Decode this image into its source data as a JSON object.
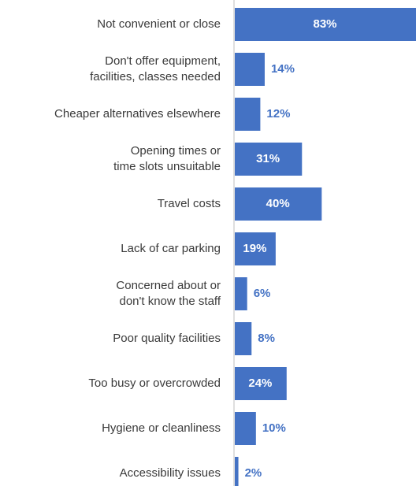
{
  "chart_data": {
    "type": "bar",
    "orientation": "horizontal",
    "categories": [
      "Not convenient or close",
      "Don't offer equipment,\nfacilities, classes needed",
      "Cheaper alternatives elsewhere",
      "Opening times or\ntime slots unsuitable",
      "Travel costs",
      "Lack of car parking",
      "Concerned about or\ndon't know the staff",
      "Poor quality facilities",
      "Too busy or overcrowded",
      "Hygiene or cleanliness",
      "Accessibility issues"
    ],
    "values": [
      83,
      14,
      12,
      31,
      40,
      19,
      6,
      8,
      24,
      10,
      2
    ],
    "value_labels": [
      "83%",
      "14%",
      "12%",
      "31%",
      "40%",
      "19%",
      "6%",
      "8%",
      "24%",
      "10%",
      "2%"
    ],
    "color": "#4472c4"
  }
}
